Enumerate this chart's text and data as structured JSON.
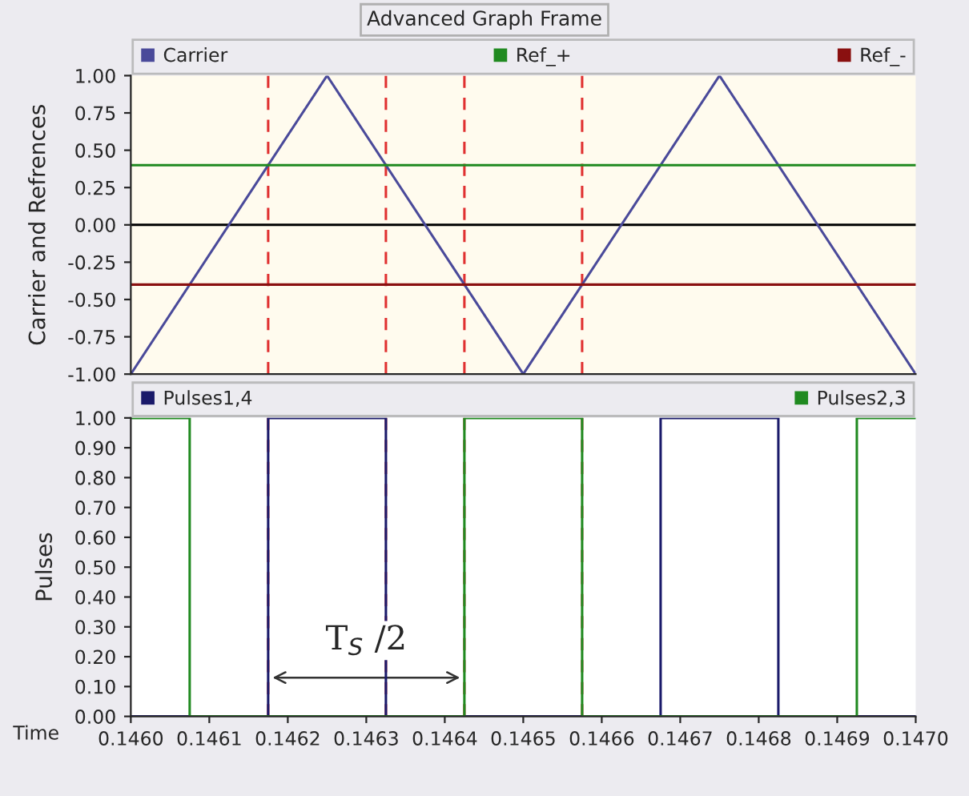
{
  "chart_data": [
    {
      "type": "line",
      "title": "Advanced Graph Frame",
      "ylabel": "Carrier and Refrences",
      "xlim": [
        0.146,
        0.147
      ],
      "ylim": [
        -1,
        1
      ],
      "yticks": [
        {
          "value": -1,
          "label": "-1.00"
        },
        {
          "value": -0.75,
          "label": "-0.75"
        },
        {
          "value": -0.5,
          "label": "-0.50"
        },
        {
          "value": -0.25,
          "label": "-0.25"
        },
        {
          "value": 0,
          "label": "0.00"
        },
        {
          "value": 0.25,
          "label": "0.25"
        },
        {
          "value": 0.5,
          "label": "0.50"
        },
        {
          "value": 0.75,
          "label": "0.75"
        },
        {
          "value": 1,
          "label": "1.00"
        }
      ],
      "tick_labels": "y",
      "legend": "top",
      "grid": false,
      "marker": "none",
      "line_style": "solid",
      "series": [
        {
          "name": "Carrier",
          "color": "#4a4a9a",
          "x": [
            0.146,
            0.14625,
            0.1465,
            0.14675,
            0.147
          ],
          "values": [
            -1,
            1,
            -1,
            1,
            -1
          ]
        },
        {
          "name": "Ref_+",
          "color": "#208a20",
          "x": [
            0.146,
            0.147
          ],
          "values": [
            0.4,
            0.4
          ]
        },
        {
          "name": "Ref_-",
          "color": "#8a1010",
          "x": [
            0.146,
            0.147
          ],
          "values": [
            -0.4,
            -0.4
          ]
        }
      ],
      "ref_lines": [
        {
          "axis": "y",
          "value": 0,
          "color": "#000000",
          "line_style": "solid"
        },
        {
          "axis": "x",
          "value": 0.146175,
          "color": "#e03030",
          "line_style": "dashed"
        },
        {
          "axis": "x",
          "value": 0.146325,
          "color": "#e03030",
          "line_style": "dashed"
        },
        {
          "axis": "x",
          "value": 0.146425,
          "color": "#e03030",
          "line_style": "dashed"
        },
        {
          "axis": "x",
          "value": 0.146575,
          "color": "#e03030",
          "line_style": "dashed"
        }
      ]
    },
    {
      "type": "line",
      "ylabel": "Pulses",
      "xlabel": "Time",
      "xlim": [
        0.146,
        0.147
      ],
      "ylim": [
        0,
        1
      ],
      "xticks": [
        {
          "value": 0.146,
          "label": "0.1460"
        },
        {
          "value": 0.1461,
          "label": "0.1461"
        },
        {
          "value": 0.1462,
          "label": "0.1462"
        },
        {
          "value": 0.1463,
          "label": "0.1463"
        },
        {
          "value": 0.1464,
          "label": "0.1464"
        },
        {
          "value": 0.1465,
          "label": "0.1465"
        },
        {
          "value": 0.1466,
          "label": "0.1466"
        },
        {
          "value": 0.1467,
          "label": "0.1467"
        },
        {
          "value": 0.1468,
          "label": "0.1468"
        },
        {
          "value": 0.1469,
          "label": "0.1469"
        },
        {
          "value": 0.147,
          "label": "0.1470"
        }
      ],
      "yticks": [
        {
          "value": 0,
          "label": "0.00"
        },
        {
          "value": 0.1,
          "label": "0.10"
        },
        {
          "value": 0.2,
          "label": "0.20"
        },
        {
          "value": 0.3,
          "label": "0.30"
        },
        {
          "value": 0.4,
          "label": "0.40"
        },
        {
          "value": 0.5,
          "label": "0.50"
        },
        {
          "value": 0.6,
          "label": "0.60"
        },
        {
          "value": 0.7,
          "label": "0.70"
        },
        {
          "value": 0.8,
          "label": "0.80"
        },
        {
          "value": 0.9,
          "label": "0.90"
        },
        {
          "value": 1,
          "label": "1.00"
        }
      ],
      "legend": "top",
      "grid": false,
      "marker": "none",
      "line_style": "solid",
      "series": [
        {
          "name": "Pulses1,4",
          "color": "#1a1a6a",
          "x": [
            0.146,
            0.146175,
            0.146175,
            0.146325,
            0.146325,
            0.146675,
            0.146675,
            0.146825,
            0.146825,
            0.147
          ],
          "values": [
            0,
            0,
            1,
            1,
            0,
            0,
            1,
            1,
            0,
            0
          ]
        },
        {
          "name": "Pulses2,3",
          "color": "#208a20",
          "x": [
            0.146,
            0.146075,
            0.146075,
            0.146425,
            0.146425,
            0.146575,
            0.146575,
            0.146925,
            0.146925,
            0.147
          ],
          "values": [
            1,
            1,
            0,
            0,
            1,
            1,
            0,
            0,
            1,
            1
          ]
        }
      ],
      "ref_lines": [
        {
          "axis": "x",
          "value": 0.146175,
          "color": "#e03030",
          "line_style": "dashed"
        },
        {
          "axis": "x",
          "value": 0.146325,
          "color": "#e03030",
          "line_style": "dashed"
        },
        {
          "axis": "x",
          "value": 0.146425,
          "color": "#e03030",
          "line_style": "dashed"
        },
        {
          "axis": "x",
          "value": 0.146575,
          "color": "#e03030",
          "line_style": "dashed"
        }
      ],
      "annotations": [
        "T$_{S}$ /2"
      ]
    }
  ]
}
